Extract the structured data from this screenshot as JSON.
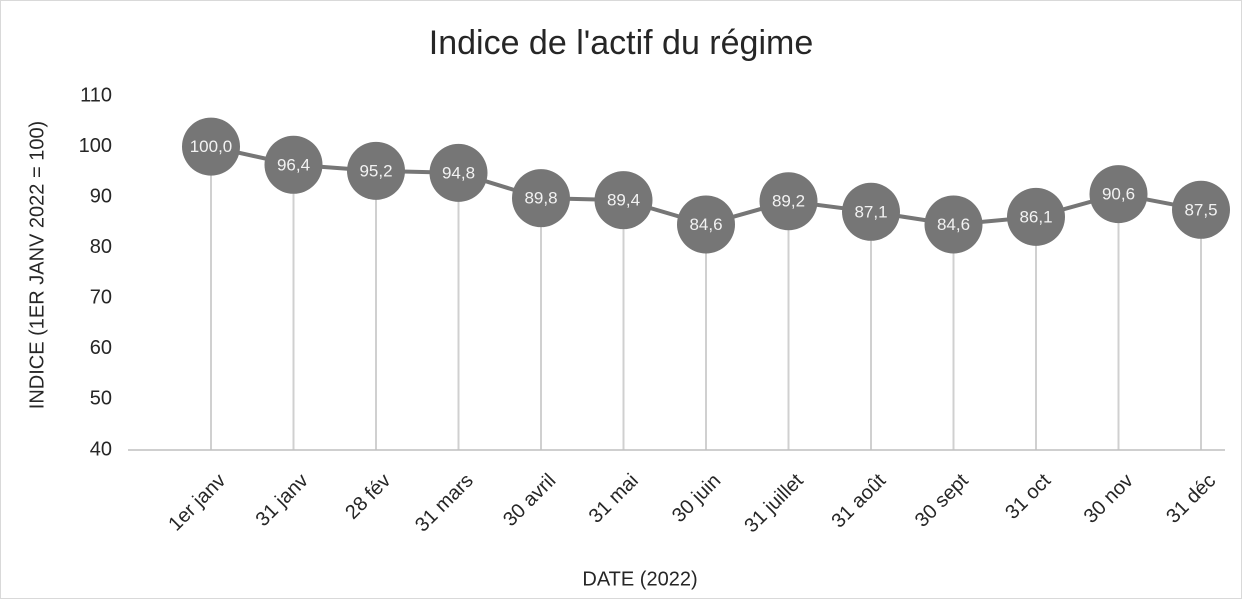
{
  "chart_data": {
    "type": "line",
    "title": "Indice de l'actif du régime",
    "x_label": "DATE (2022)",
    "y_label": "INDICE (1ER JANV 2022 = 100)",
    "categories": [
      "1er janv",
      "31 janv",
      "28 fév",
      "31 mars",
      "30 avril",
      "31 mai",
      "30 juin",
      "31 juillet",
      "31 août",
      "30 sept",
      "31 oct",
      "30 nov",
      "31 déc"
    ],
    "values": [
      100.0,
      96.4,
      95.2,
      94.8,
      89.8,
      89.4,
      84.6,
      89.2,
      87.1,
      84.6,
      86.1,
      90.6,
      87.5
    ],
    "value_labels": [
      "100,0",
      "96,4",
      "95,2",
      "94,8",
      "89,8",
      "89,4",
      "84,6",
      "89,2",
      "87,1",
      "84,6",
      "86,1",
      "90,6",
      "87,5"
    ],
    "color": "#767676",
    "drop_line_color": "#d0d0d0",
    "ylim": [
      40,
      110
    ],
    "yticks": [
      40,
      50,
      60,
      70,
      80,
      90,
      100,
      110
    ],
    "grid": false
  }
}
